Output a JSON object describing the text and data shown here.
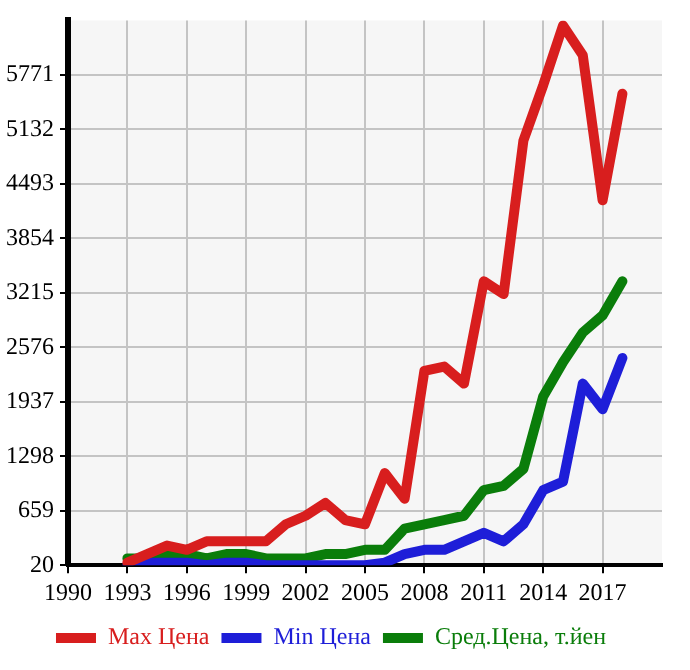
{
  "chart_data": {
    "type": "line",
    "x": [
      1993,
      1994,
      1995,
      1996,
      1997,
      1998,
      1999,
      2000,
      2001,
      2002,
      2003,
      2004,
      2005,
      2006,
      2007,
      2008,
      2009,
      2010,
      2011,
      2012,
      2013,
      2014,
      2015,
      2016,
      2017,
      2018
    ],
    "series": [
      {
        "name": "Max Цена",
        "color": "#d81e1e",
        "values": [
          50,
          150,
          250,
          200,
          300,
          300,
          300,
          300,
          500,
          600,
          750,
          550,
          500,
          1100,
          800,
          2300,
          2350,
          2150,
          3350,
          3200,
          5000,
          5650,
          6350,
          6000,
          4300,
          5550
        ]
      },
      {
        "name": "Min Цена",
        "color": "#1e1ed8",
        "values": [
          20,
          50,
          50,
          50,
          20,
          50,
          50,
          20,
          20,
          20,
          20,
          20,
          20,
          50,
          150,
          200,
          200,
          300,
          400,
          300,
          500,
          900,
          1000,
          2150,
          1850,
          2450
        ]
      },
      {
        "name": "Сред.Цена, т.йен",
        "color": "#0a7d0a",
        "values": [
          100,
          100,
          150,
          150,
          100,
          150,
          150,
          100,
          100,
          100,
          150,
          150,
          200,
          200,
          450,
          500,
          550,
          600,
          900,
          950,
          1150,
          2000,
          2400,
          2750,
          2950,
          3350
        ]
      }
    ],
    "xlim": [
      1990,
      2020
    ],
    "xticks": [
      1990,
      1993,
      1996,
      1999,
      2002,
      2005,
      2008,
      2011,
      2014,
      2017
    ],
    "ylim": [
      20,
      6410
    ],
    "yticks": [
      20,
      659,
      1298,
      1937,
      2576,
      3215,
      3854,
      4493,
      5132,
      5771
    ],
    "grid": true,
    "legend": "bottom",
    "marker": "none",
    "line_style": "solid"
  }
}
